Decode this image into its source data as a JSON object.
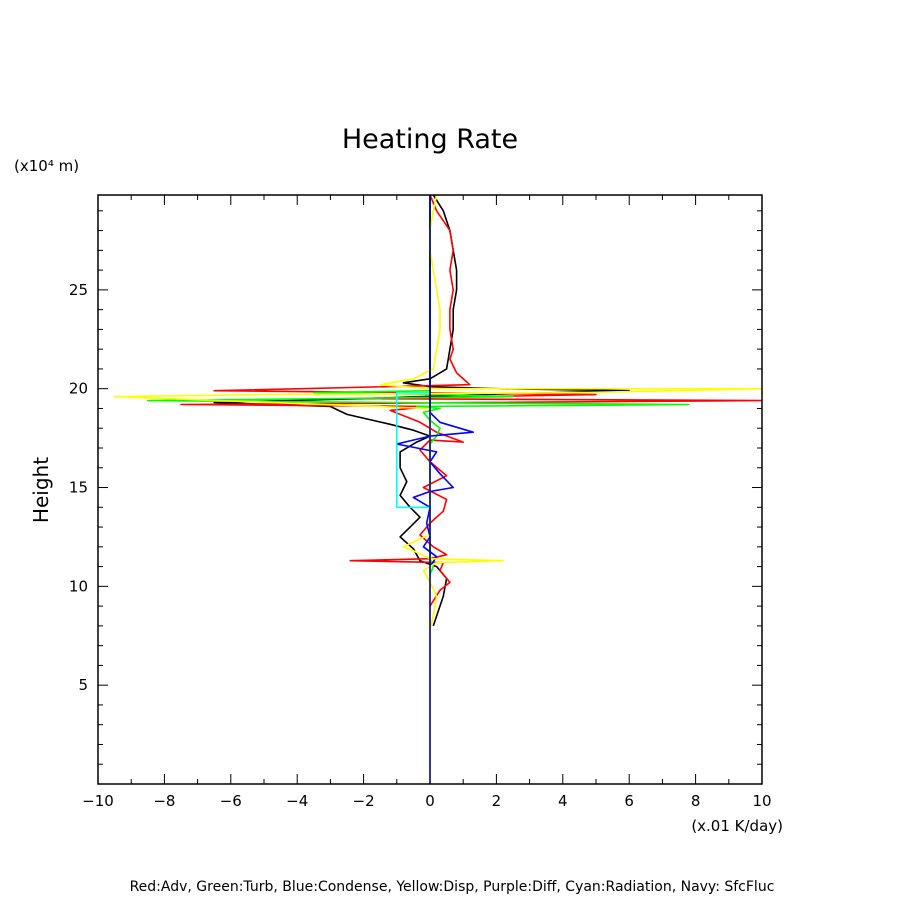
{
  "chart_data": {
    "type": "line",
    "title": "Heating Rate",
    "ylabel": "Height",
    "y_unit": "(x10⁴ m)",
    "x_unit": "(x.01 K/day)",
    "xlim": [
      -10,
      10
    ],
    "ylim": [
      0,
      29.8
    ],
    "xticks": [
      -10,
      -8,
      -6,
      -4,
      -2,
      0,
      2,
      4,
      6,
      8,
      10
    ],
    "xtick_labels": [
      "−10",
      "−8",
      "−6",
      "−4",
      "−2",
      "0",
      "2",
      "4",
      "6",
      "8",
      "10"
    ],
    "yticks": [
      5,
      10,
      15,
      20,
      25
    ],
    "ytick_labels": [
      "5",
      "10",
      "15",
      "20",
      "25"
    ],
    "legend_text": "Red:Adv, Green:Turb, Blue:Condense, Yellow:Disp, Purple:Diff, Cyan:Radiation, Navy: SfcFluc",
    "series": [
      {
        "color": "#000000",
        "points": [
          [
            0.1,
            8.0
          ],
          [
            0.4,
            9.5
          ],
          [
            0.5,
            10.4
          ],
          [
            0.2,
            11.0
          ],
          [
            -0.3,
            11.3
          ],
          [
            -0.5,
            11.9
          ],
          [
            -0.9,
            12.5
          ],
          [
            -0.6,
            13.0
          ],
          [
            -0.3,
            13.5
          ],
          [
            -0.6,
            14.0
          ],
          [
            -0.9,
            14.6
          ],
          [
            -0.7,
            15.3
          ],
          [
            -0.9,
            16.0
          ],
          [
            -0.9,
            16.8
          ],
          [
            -0.4,
            17.3
          ],
          [
            0.0,
            17.6
          ],
          [
            -0.5,
            17.9
          ],
          [
            -1.2,
            18.2
          ],
          [
            -2.5,
            18.7
          ],
          [
            -3.0,
            19.1
          ],
          [
            -6.5,
            19.3
          ],
          [
            -2.0,
            19.5
          ],
          [
            1.5,
            19.7
          ],
          [
            6.0,
            19.9
          ],
          [
            2.0,
            20.0
          ],
          [
            0.0,
            20.1
          ],
          [
            -0.8,
            20.3
          ],
          [
            0.0,
            20.5
          ],
          [
            0.5,
            21.0
          ],
          [
            0.6,
            22.0
          ],
          [
            0.7,
            23.0
          ],
          [
            0.7,
            24.0
          ],
          [
            0.8,
            25.0
          ],
          [
            0.8,
            26.0
          ],
          [
            0.7,
            27.0
          ],
          [
            0.6,
            28.0
          ],
          [
            0.4,
            29.0
          ],
          [
            0.1,
            29.8
          ]
        ]
      },
      {
        "color": "#ff0000",
        "points": [
          [
            0.0,
            9.0
          ],
          [
            0.3,
            9.8
          ],
          [
            0.6,
            10.2
          ],
          [
            0.3,
            10.8
          ],
          [
            0.4,
            11.2
          ],
          [
            -2.4,
            11.3
          ],
          [
            0.0,
            11.4
          ],
          [
            0.5,
            11.6
          ],
          [
            0.1,
            12.0
          ],
          [
            -0.3,
            12.6
          ],
          [
            0.0,
            13.2
          ],
          [
            0.4,
            13.8
          ],
          [
            0.5,
            14.4
          ],
          [
            -0.2,
            15.0
          ],
          [
            0.5,
            15.6
          ],
          [
            0.0,
            16.3
          ],
          [
            -0.3,
            16.9
          ],
          [
            0.0,
            17.4
          ],
          [
            1.0,
            17.3
          ],
          [
            0.2,
            17.8
          ],
          [
            -0.3,
            18.3
          ],
          [
            -1.2,
            18.9
          ],
          [
            0.0,
            19.1
          ],
          [
            -7.5,
            19.2
          ],
          [
            10.0,
            19.4
          ],
          [
            -2.0,
            19.5
          ],
          [
            5.0,
            19.7
          ],
          [
            -6.5,
            19.9
          ],
          [
            1.2,
            20.2
          ],
          [
            0.8,
            20.8
          ],
          [
            0.6,
            21.5
          ],
          [
            0.7,
            22.0
          ],
          [
            0.6,
            23.0
          ],
          [
            0.6,
            24.0
          ],
          [
            0.7,
            25.0
          ],
          [
            0.6,
            26.0
          ],
          [
            0.7,
            27.0
          ],
          [
            0.6,
            28.0
          ],
          [
            0.2,
            29.0
          ],
          [
            0.0,
            29.8
          ]
        ]
      },
      {
        "color": "#00ff00",
        "points": [
          [
            0.0,
            10.6
          ],
          [
            0.1,
            11.0
          ],
          [
            0.0,
            11.4
          ],
          [
            0.0,
            17.2
          ],
          [
            0.2,
            17.6
          ],
          [
            0.3,
            18.0
          ],
          [
            0.0,
            18.4
          ],
          [
            -0.2,
            18.8
          ],
          [
            0.3,
            19.0
          ],
          [
            -0.4,
            19.1
          ],
          [
            7.8,
            19.2
          ],
          [
            -1.0,
            19.3
          ],
          [
            -8.5,
            19.4
          ],
          [
            2.5,
            19.6
          ],
          [
            0.3,
            19.7
          ],
          [
            -3.5,
            19.8
          ],
          [
            0.0,
            19.9
          ],
          [
            0.0,
            29.8
          ]
        ]
      },
      {
        "color": "#0000ff",
        "points": [
          [
            0.0,
            11.0
          ],
          [
            0.2,
            11.5
          ],
          [
            -0.2,
            12.0
          ],
          [
            0.0,
            12.5
          ],
          [
            -0.1,
            13.2
          ],
          [
            0.0,
            14.0
          ],
          [
            -0.5,
            14.5
          ],
          [
            0.0,
            14.8
          ],
          [
            0.7,
            15.0
          ],
          [
            0.3,
            15.7
          ],
          [
            0.0,
            16.3
          ],
          [
            0.2,
            16.8
          ],
          [
            -1.0,
            17.2
          ],
          [
            0.0,
            17.6
          ],
          [
            1.3,
            17.8
          ],
          [
            0.3,
            18.3
          ],
          [
            0.0,
            18.8
          ],
          [
            0.0,
            29.8
          ]
        ]
      },
      {
        "color": "#ffff00",
        "points": [
          [
            0.0,
            7.8
          ],
          [
            0.1,
            8.5
          ],
          [
            0.2,
            9.5
          ],
          [
            0.0,
            10.2
          ],
          [
            -0.2,
            10.8
          ],
          [
            0.2,
            11.2
          ],
          [
            2.2,
            11.3
          ],
          [
            0.0,
            11.4
          ],
          [
            -0.5,
            11.8
          ],
          [
            -0.8,
            12.0
          ],
          [
            -0.3,
            12.4
          ],
          [
            0.0,
            12.6
          ],
          [
            0.0,
            19.0
          ],
          [
            -9.5,
            19.6
          ],
          [
            -5.0,
            19.7
          ],
          [
            4.5,
            19.8
          ],
          [
            10.0,
            20.0
          ],
          [
            0.0,
            20.0
          ],
          [
            -1.5,
            20.2
          ],
          [
            -0.5,
            20.5
          ],
          [
            0.1,
            21.0
          ],
          [
            0.2,
            22.0
          ],
          [
            0.3,
            23.0
          ],
          [
            0.3,
            24.0
          ],
          [
            0.2,
            25.0
          ],
          [
            0.1,
            26.0
          ],
          [
            0.0,
            27.0
          ],
          [
            0.0,
            28.0
          ],
          [
            0.1,
            29.0
          ],
          [
            0.2,
            29.8
          ]
        ]
      },
      {
        "color": "#00ffff",
        "points": [
          [
            0.0,
            14.0
          ],
          [
            -1.0,
            14.0
          ],
          [
            -1.0,
            19.8
          ],
          [
            0.0,
            19.8
          ]
        ]
      },
      {
        "color": "#000080",
        "points": [
          [
            0.0,
            0.0
          ],
          [
            0.0,
            29.8
          ]
        ]
      }
    ]
  }
}
